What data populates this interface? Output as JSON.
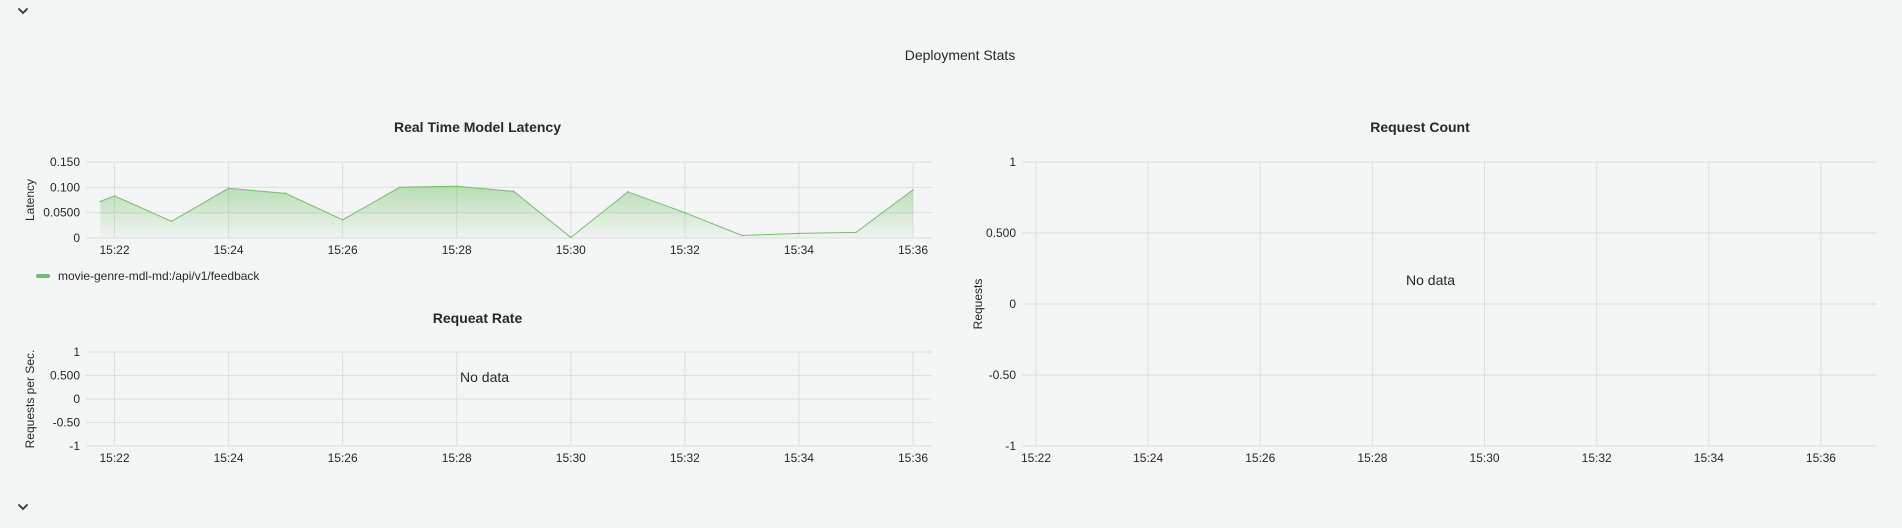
{
  "section": {
    "title": "Deployment Stats"
  },
  "icons": {
    "top_chevron": "chevron-down-icon",
    "bottom_chevron": "chevron-down-icon"
  },
  "colors": {
    "series": "#73bf69",
    "grid": "#dcdedf",
    "background": "#f4f5f5"
  },
  "latency_panel": {
    "title": "Real Time Model Latency",
    "ylabel": "Latency",
    "y_ticks": [
      "0",
      "0.0500",
      "0.100",
      "0.150"
    ],
    "x_ticks": [
      "15:22",
      "15:24",
      "15:26",
      "15:28",
      "15:30",
      "15:32",
      "15:34",
      "15:36"
    ],
    "legend": "movie-genre-mdl-md:/api/v1/feedback"
  },
  "rate_panel": {
    "title": "Requeat Rate",
    "ylabel": "Requests per Sec.",
    "y_ticks": [
      "-1",
      "-0.50",
      "0",
      "0.500",
      "1"
    ],
    "x_ticks": [
      "15:22",
      "15:24",
      "15:26",
      "15:28",
      "15:30",
      "15:32",
      "15:34",
      "15:36"
    ],
    "no_data": "No data"
  },
  "count_panel": {
    "title": "Request Count",
    "ylabel": "Requests",
    "y_ticks": [
      "-1",
      "-0.50",
      "0",
      "0.500",
      "1"
    ],
    "x_ticks": [
      "15:22",
      "15:24",
      "15:26",
      "15:28",
      "15:30",
      "15:32",
      "15:34",
      "15:36"
    ],
    "no_data": "No data"
  },
  "chart_data": [
    {
      "type": "area",
      "title": "Real Time Model Latency",
      "xlabel": "",
      "ylabel": "Latency",
      "x": [
        "15:21:45",
        "15:22",
        "15:23",
        "15:24",
        "15:25",
        "15:26",
        "15:27",
        "15:28",
        "15:29",
        "15:30",
        "15:31",
        "15:32",
        "15:33",
        "15:34",
        "15:35",
        "15:36"
      ],
      "series": [
        {
          "name": "movie-genre-mdl-md:/api/v1/feedback",
          "values": [
            0.072,
            0.083,
            0.033,
            0.098,
            0.088,
            0.036,
            0.1,
            0.102,
            0.092,
            0.001,
            0.091,
            0.05,
            0.005,
            0.009,
            0.011,
            0.095
          ]
        }
      ],
      "ylim": [
        0,
        0.15
      ],
      "grid": true,
      "legend": "bottom-left"
    },
    {
      "type": "line",
      "title": "Requeat Rate",
      "xlabel": "",
      "ylabel": "Requests per Sec.",
      "x": [],
      "series": [],
      "ylim": [
        -1,
        1
      ],
      "grid": true
    },
    {
      "type": "line",
      "title": "Request Count",
      "xlabel": "",
      "ylabel": "Requests",
      "x": [],
      "series": [],
      "ylim": [
        -1,
        1
      ],
      "grid": true
    }
  ]
}
